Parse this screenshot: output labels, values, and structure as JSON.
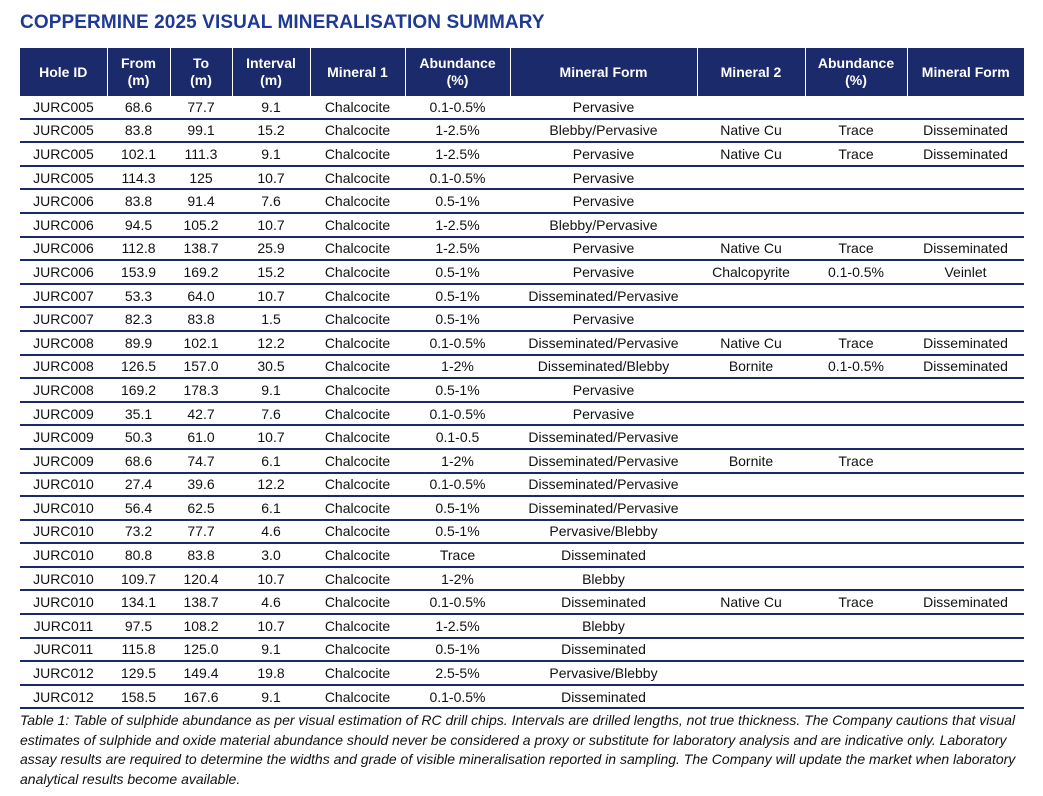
{
  "header": {
    "title": "COPPERMINE 2025 VISUAL MINERALISATION SUMMARY"
  },
  "table": {
    "columns": [
      "Hole ID",
      "From\n(m)",
      "To\n(m)",
      "Interval\n(m)",
      "Mineral 1",
      "Abundance\n(%)",
      "Mineral Form",
      "Mineral 2",
      "Abundance\n(%)",
      "Mineral Form"
    ],
    "rows": [
      [
        "JURC005",
        "68.6",
        "77.7",
        "9.1",
        "Chalcocite",
        "0.1-0.5%",
        "Pervasive",
        null,
        null,
        null
      ],
      [
        "JURC005",
        "83.8",
        "99.1",
        "15.2",
        "Chalcocite",
        "1-2.5%",
        "Blebby/Pervasive",
        "Native Cu",
        "Trace",
        "Disseminated"
      ],
      [
        "JURC005",
        "102.1",
        "111.3",
        "9.1",
        "Chalcocite",
        "1-2.5%",
        "Pervasive",
        "Native Cu",
        "Trace",
        "Disseminated"
      ],
      [
        "JURC005",
        "114.3",
        "125",
        "10.7",
        "Chalcocite",
        "0.1-0.5%",
        "Pervasive",
        null,
        null,
        null
      ],
      [
        "JURC006",
        "83.8",
        "91.4",
        "7.6",
        "Chalcocite",
        "0.5-1%",
        "Pervasive",
        null,
        null,
        null
      ],
      [
        "JURC006",
        "94.5",
        "105.2",
        "10.7",
        "Chalcocite",
        "1-2.5%",
        "Blebby/Pervasive",
        null,
        null,
        null
      ],
      [
        "JURC006",
        "112.8",
        "138.7",
        "25.9",
        "Chalcocite",
        "1-2.5%",
        "Pervasive",
        "Native Cu",
        "Trace",
        "Disseminated"
      ],
      [
        "JURC006",
        "153.9",
        "169.2",
        "15.2",
        "Chalcocite",
        "0.5-1%",
        "Pervasive",
        "Chalcopyrite",
        "0.1-0.5%",
        "Veinlet"
      ],
      [
        "JURC007",
        "53.3",
        "64.0",
        "10.7",
        "Chalcocite",
        "0.5-1%",
        "Disseminated/Pervasive",
        null,
        null,
        null
      ],
      [
        "JURC007",
        "82.3",
        "83.8",
        "1.5",
        "Chalcocite",
        "0.5-1%",
        "Pervasive",
        null,
        null,
        null
      ],
      [
        "JURC008",
        "89.9",
        "102.1",
        "12.2",
        "Chalcocite",
        "0.1-0.5%",
        "Disseminated/Pervasive",
        "Native Cu",
        "Trace",
        "Disseminated"
      ],
      [
        "JURC008",
        "126.5",
        "157.0",
        "30.5",
        "Chalcocite",
        "1-2%",
        "Disseminated/Blebby",
        "Bornite",
        "0.1-0.5%",
        "Disseminated"
      ],
      [
        "JURC008",
        "169.2",
        "178.3",
        "9.1",
        "Chalcocite",
        "0.5-1%",
        "Pervasive",
        null,
        null,
        null
      ],
      [
        "JURC009",
        "35.1",
        "42.7",
        "7.6",
        "Chalcocite",
        "0.1-0.5%",
        "Pervasive",
        null,
        null,
        null
      ],
      [
        "JURC009",
        "50.3",
        "61.0",
        "10.7",
        "Chalcocite",
        "0.1-0.5",
        "Disseminated/Pervasive",
        null,
        null,
        null
      ],
      [
        "JURC009",
        "68.6",
        "74.7",
        "6.1",
        "Chalcocite",
        "1-2%",
        "Disseminated/Pervasive",
        "Bornite",
        "Trace",
        null
      ],
      [
        "JURC010",
        "27.4",
        "39.6",
        "12.2",
        "Chalcocite",
        "0.1-0.5%",
        "Disseminated/Pervasive",
        null,
        null,
        null
      ],
      [
        "JURC010",
        "56.4",
        "62.5",
        "6.1",
        "Chalcocite",
        "0.5-1%",
        "Disseminated/Pervasive",
        null,
        null,
        null
      ],
      [
        "JURC010",
        "73.2",
        "77.7",
        "4.6",
        "Chalcocite",
        "0.5-1%",
        "Pervasive/Blebby",
        null,
        null,
        null
      ],
      [
        "JURC010",
        "80.8",
        "83.8",
        "3.0",
        "Chalcocite",
        "Trace",
        "Disseminated",
        null,
        null,
        null
      ],
      [
        "JURC010",
        "109.7",
        "120.4",
        "10.7",
        "Chalcocite",
        "1-2%",
        "Blebby",
        null,
        null,
        null
      ],
      [
        "JURC010",
        "134.1",
        "138.7",
        "4.6",
        "Chalcocite",
        "0.1-0.5%",
        "Disseminated",
        "Native Cu",
        "Trace",
        "Disseminated"
      ],
      [
        "JURC011",
        "97.5",
        "108.2",
        "10.7",
        "Chalcocite",
        "1-2.5%",
        "Blebby",
        null,
        null,
        null
      ],
      [
        "JURC011",
        "115.8",
        "125.0",
        "9.1",
        "Chalcocite",
        "0.5-1%",
        "Disseminated",
        null,
        null,
        null
      ],
      [
        "JURC012",
        "129.5",
        "149.4",
        "19.8",
        "Chalcocite",
        "2.5-5%",
        "Pervasive/Blebby",
        null,
        null,
        null
      ],
      [
        "JURC012",
        "158.5",
        "167.6",
        "9.1",
        "Chalcocite",
        "0.1-0.5%",
        "Disseminated",
        null,
        null,
        null
      ]
    ]
  },
  "caption": "Table 1:  Table of sulphide abundance as per visual estimation of RC drill chips. Intervals are drilled lengths, not true thickness. The Company cautions that visual estimates of sulphide and oxide material abundance should never be considered a proxy or substitute for laboratory analysis and are indicative only. Laboratory assay results are required to determine the widths and grade of visible mineralisation reported in sampling. The Company will update the market when laboratory analytical results become available."
}
